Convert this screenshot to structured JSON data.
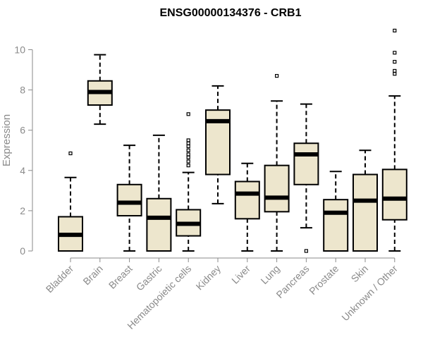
{
  "chart_data": {
    "type": "box",
    "title": "ENSG00000134376 - CRB1",
    "xlabel": "",
    "ylabel": "Expression",
    "ylim": [
      0,
      11
    ],
    "yticks": [
      0,
      2,
      4,
      6,
      8,
      10
    ],
    "box_fill": "#ede6cd",
    "box_stroke": "#000000",
    "axis_color": "#8a8a8a",
    "grid": false,
    "categories": [
      "Bladder",
      "Brain",
      "Breast",
      "Gastric",
      "Hematopoietic cells",
      "Kidney",
      "Liver",
      "Lung",
      "Pancreas",
      "Prostate",
      "Skin",
      "Unknown / Other"
    ],
    "boxes": [
      {
        "category": "Bladder",
        "min": 0,
        "q1": 0,
        "median": 0.8,
        "q3": 1.7,
        "max": 3.65,
        "outliers": [
          4.85
        ]
      },
      {
        "category": "Brain",
        "min": 6.3,
        "q1": 7.25,
        "median": 7.9,
        "q3": 8.45,
        "max": 9.75,
        "outliers": []
      },
      {
        "category": "Breast",
        "min": 0,
        "q1": 1.75,
        "median": 2.4,
        "q3": 3.3,
        "max": 5.25,
        "outliers": []
      },
      {
        "category": "Gastric",
        "min": 0,
        "q1": 0,
        "median": 1.65,
        "q3": 2.6,
        "max": 5.75,
        "outliers": []
      },
      {
        "category": "Hematopoietic cells",
        "min": 0,
        "q1": 0.75,
        "median": 1.35,
        "q3": 2.05,
        "max": 3.9,
        "outliers": [
          4.25,
          4.45,
          4.65,
          4.8,
          5.0,
          5.2,
          5.35,
          5.5,
          6.8
        ]
      },
      {
        "category": "Kidney",
        "min": 2.35,
        "q1": 3.8,
        "median": 6.45,
        "q3": 7.0,
        "max": 8.2,
        "outliers": []
      },
      {
        "category": "Liver",
        "min": 0,
        "q1": 1.6,
        "median": 2.85,
        "q3": 3.45,
        "max": 4.35,
        "outliers": []
      },
      {
        "category": "Lung",
        "min": 0,
        "q1": 1.95,
        "median": 2.65,
        "q3": 4.25,
        "max": 7.45,
        "outliers": [
          8.7
        ]
      },
      {
        "category": "Pancreas",
        "min": 1.15,
        "q1": 3.3,
        "median": 4.8,
        "q3": 5.35,
        "max": 7.3,
        "outliers": [
          0
        ]
      },
      {
        "category": "Prostate",
        "min": 0,
        "q1": 0,
        "median": 1.9,
        "q3": 2.55,
        "max": 3.95,
        "outliers": []
      },
      {
        "category": "Skin",
        "min": 0,
        "q1": 0,
        "median": 2.5,
        "q3": 3.8,
        "max": 5.0,
        "outliers": []
      },
      {
        "category": "Unknown / Other",
        "min": 0,
        "q1": 1.55,
        "median": 2.6,
        "q3": 4.05,
        "max": 7.7,
        "outliers": [
          8.8,
          8.95,
          9.4,
          9.85,
          10.95
        ]
      }
    ]
  }
}
